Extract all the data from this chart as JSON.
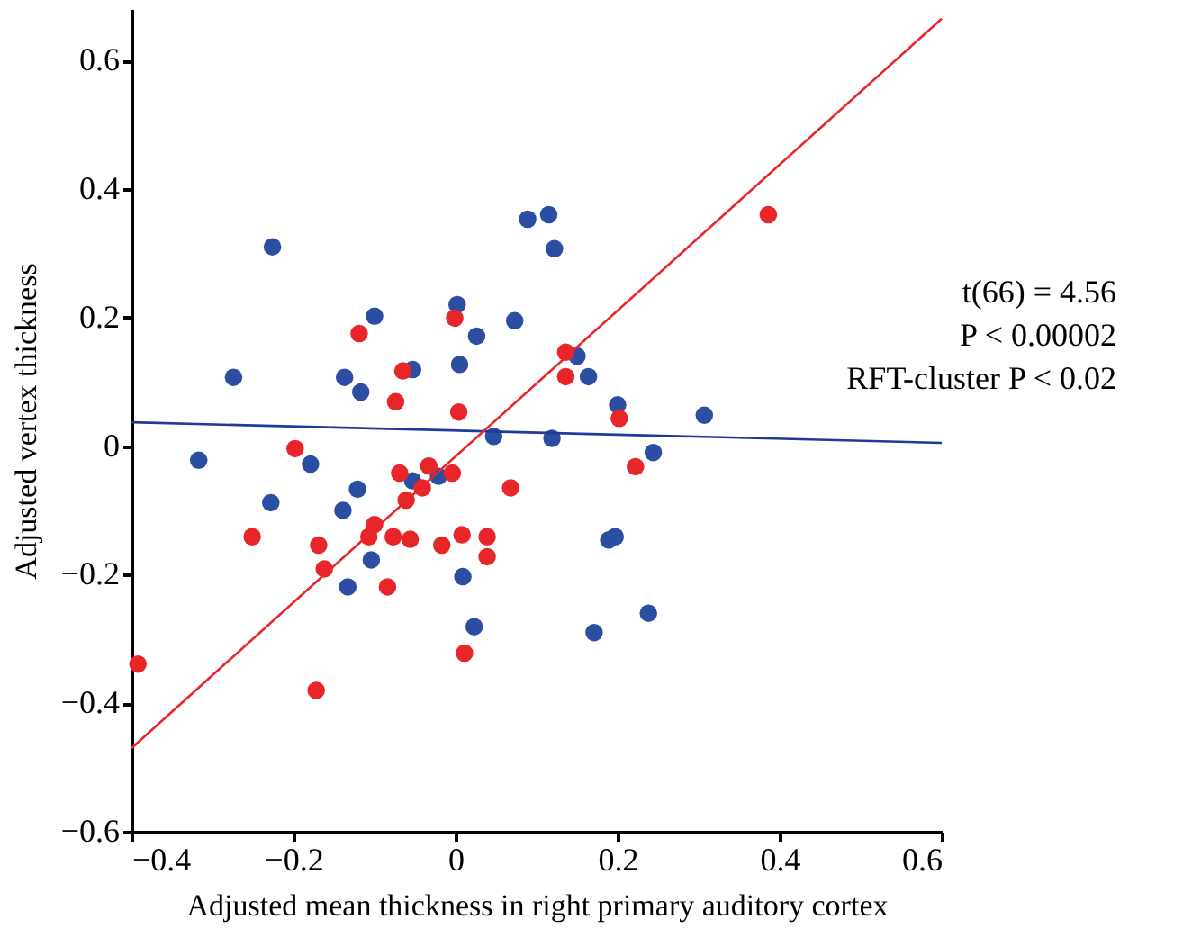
{
  "chart_data": {
    "type": "scatter",
    "xlabel": "Adjusted mean thickness in right primary auditory cortex",
    "ylabel": "Adjusted vertex thickness",
    "xlim": [
      -0.4,
      0.6
    ],
    "ylim": [
      -0.6,
      0.68
    ],
    "xticks": [
      -0.4,
      -0.2,
      0,
      0.2,
      0.4,
      0.6
    ],
    "yticks": [
      -0.6,
      -0.4,
      -0.2,
      0,
      0.2,
      0.4,
      0.6
    ],
    "grid": false,
    "marker": "circle",
    "annotations": [
      "t(66) = 4.56",
      "P < 0.00002",
      "RFT-cluster P < 0.02"
    ],
    "series": [
      {
        "color": "#2b4ea2",
        "x": [
          -0.226,
          -0.274,
          -0.1,
          -0.137,
          -0.117,
          -0.053,
          0.002,
          0.026,
          0.005,
          0.073,
          0.089,
          0.047,
          -0.317,
          -0.179,
          -0.228,
          -0.121,
          -0.139,
          -0.053,
          -0.021,
          -0.104,
          -0.133,
          0.009,
          0.023,
          0.115,
          0.122,
          0.15,
          0.164,
          0.2,
          0.307,
          0.119,
          0.244,
          0.189,
          0.197,
          0.171,
          0.238
        ],
        "values": [
          0.31,
          0.107,
          0.202,
          0.107,
          0.084,
          0.119,
          0.22,
          0.171,
          0.127,
          0.195,
          0.353,
          0.015,
          -0.022,
          -0.028,
          -0.088,
          -0.067,
          -0.1,
          -0.054,
          -0.047,
          -0.177,
          -0.219,
          -0.203,
          -0.281,
          0.36,
          0.307,
          0.14,
          0.108,
          0.064,
          0.048,
          0.012,
          -0.01,
          -0.146,
          -0.141,
          -0.29,
          -0.26
        ]
      },
      {
        "color": "#e8262a",
        "x": [
          -0.119,
          -0.001,
          -0.065,
          -0.074,
          0.004,
          -0.198,
          -0.069,
          -0.033,
          -0.004,
          -0.041,
          -0.061,
          0.068,
          -0.1,
          -0.107,
          -0.077,
          -0.056,
          -0.251,
          -0.169,
          -0.162,
          -0.084,
          -0.017,
          0.008,
          0.039,
          0.039,
          0.011,
          -0.392,
          -0.172,
          0.386,
          0.136,
          0.136,
          0.202,
          0.222
        ],
        "values": [
          0.175,
          0.199,
          0.117,
          0.069,
          0.053,
          -0.004,
          -0.042,
          -0.031,
          -0.042,
          -0.065,
          -0.084,
          -0.065,
          -0.122,
          -0.141,
          -0.141,
          -0.145,
          -0.141,
          -0.154,
          -0.191,
          -0.219,
          -0.154,
          -0.138,
          -0.172,
          -0.141,
          -0.322,
          -0.339,
          -0.38,
          0.36,
          0.146,
          0.108,
          0.043,
          -0.032
        ]
      },
      {
        "type": "line",
        "marker": "none",
        "color": "#1f3a9a",
        "x": [
          -0.4,
          0.6
        ],
        "values": [
          0.037,
          0.005
        ]
      },
      {
        "type": "line",
        "marker": "none",
        "color": "#e8262a",
        "x": [
          -0.4,
          0.6
        ],
        "values": [
          -0.47,
          0.665
        ]
      }
    ]
  }
}
